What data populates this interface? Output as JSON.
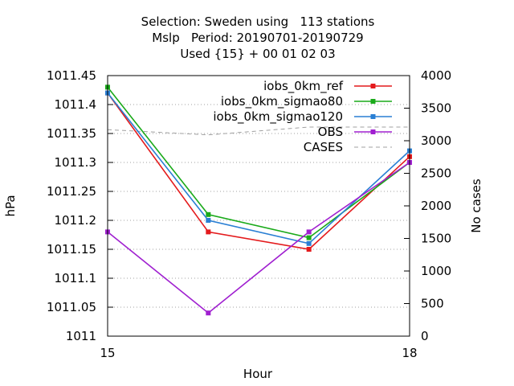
{
  "chart_data": {
    "type": "line",
    "title_lines": [
      "Selection: Sweden using   113 stations",
      "Mslp   Period: 20190701-20190729",
      "Used {15} + 00 01 02 03"
    ],
    "xlabel": "Hour",
    "ylabel": "hPa",
    "y2label": "No cases",
    "xlim": [
      15,
      18
    ],
    "ylim": [
      1011,
      1011.45
    ],
    "y2lim": [
      0,
      4000
    ],
    "x_ticks": [
      15,
      18
    ],
    "y_ticks": [
      "1011",
      "1011.05",
      "1011.1",
      "1011.15",
      "1011.2",
      "1011.25",
      "1011.3",
      "1011.35",
      "1011.4",
      "1011.45"
    ],
    "y2_ticks": [
      "0",
      "500",
      "1000",
      "1500",
      "2000",
      "2500",
      "3000",
      "3500",
      "4000"
    ],
    "legend_position": "top-right",
    "x": [
      15,
      16,
      17,
      18
    ],
    "series": [
      {
        "name": "iobs_0km_ref",
        "color": "#e41a1c",
        "values": [
          1011.42,
          1011.18,
          1011.15,
          1011.31
        ]
      },
      {
        "name": "iobs_0km_sigmao80",
        "color": "#1aaa1a",
        "values": [
          1011.43,
          1011.21,
          1011.17,
          1011.3
        ]
      },
      {
        "name": "iobs_0km_sigmao120",
        "color": "#2a7fd4",
        "values": [
          1011.42,
          1011.2,
          1011.16,
          1011.32
        ]
      },
      {
        "name": "OBS",
        "color": "#a020d0",
        "values": [
          1011.18,
          1011.04,
          1011.18,
          1011.3
        ]
      }
    ],
    "cases": {
      "name": "CASES",
      "color": "#a0a0a0",
      "axis": "right",
      "values": [
        3170,
        3090,
        3210,
        3210
      ]
    }
  }
}
